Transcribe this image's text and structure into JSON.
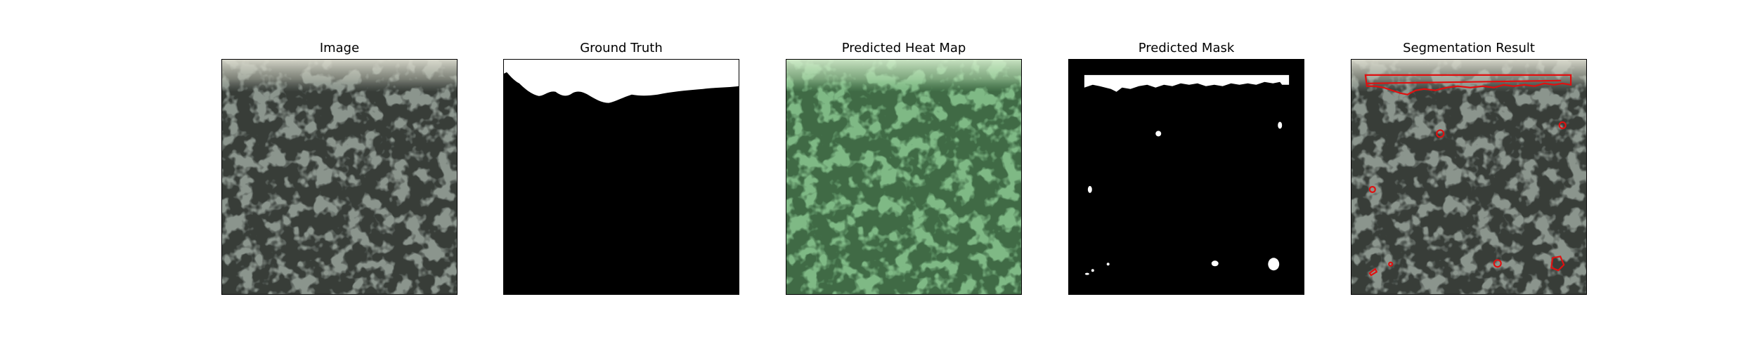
{
  "figure": {
    "panels": [
      {
        "id": "image",
        "title": "Image"
      },
      {
        "id": "ground_truth",
        "title": "Ground Truth"
      },
      {
        "id": "heatmap",
        "title": "Predicted Heat Map"
      },
      {
        "id": "mask",
        "title": "Predicted Mask"
      },
      {
        "id": "segmentation",
        "title": "Segmentation Result"
      }
    ],
    "colors": {
      "texture_base": "#8b958d",
      "texture_dark": "#3a3f3b",
      "heatmap_tint": "#7fd08a",
      "mask_white": "#ffffff",
      "mask_black": "#000000",
      "contour": "#e01010"
    }
  }
}
